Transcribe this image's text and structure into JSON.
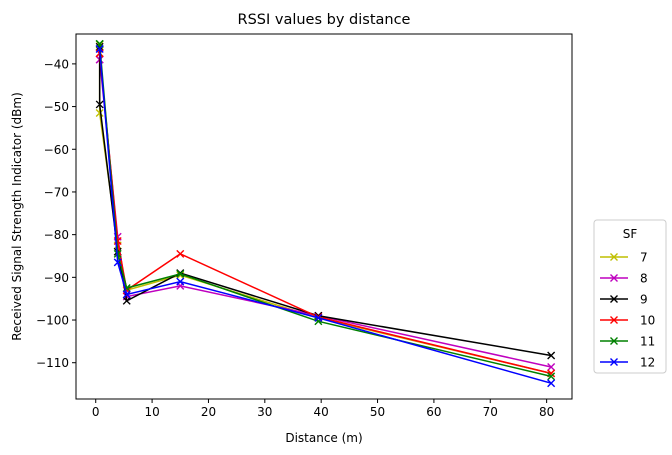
{
  "chart_data": {
    "type": "line",
    "title": "RSSI values by distance",
    "xlabel": "Distance (m)",
    "ylabel": "Received Signal Strength Indicator (dBm)",
    "xlim": [
      -3.5,
      84.5
    ],
    "ylim": [
      -118.5,
      -33
    ],
    "xticks": [
      0,
      10,
      20,
      30,
      40,
      50,
      60,
      70,
      80
    ],
    "yticks": [
      -110,
      -100,
      -90,
      -80,
      -70,
      -60,
      -50,
      -40
    ],
    "grid": false,
    "marker": "x",
    "legend": {
      "title": "SF",
      "placement": "outside right, lower"
    },
    "series": [
      {
        "name": "7",
        "color": "#bfbf00",
        "points": [
          [
            0.7,
            -35.5
          ],
          [
            0.7,
            -51.5
          ],
          [
            3.9,
            -82.5
          ],
          [
            5.5,
            -93
          ],
          [
            15,
            -89.5
          ],
          [
            39.5,
            -99.5
          ],
          [
            80.8,
            -112.5
          ]
        ]
      },
      {
        "name": "8",
        "color": "#bf00bf",
        "points": [
          [
            0.7,
            -39
          ],
          [
            0.7,
            -39
          ],
          [
            3.9,
            -80.5
          ],
          [
            5.5,
            -94.5
          ],
          [
            15,
            -92
          ],
          [
            39.5,
            -99
          ],
          [
            80.8,
            -111
          ]
        ]
      },
      {
        "name": "9",
        "color": "#000000",
        "points": [
          [
            0.7,
            -36
          ],
          [
            0.7,
            -49.5
          ],
          [
            3.9,
            -84
          ],
          [
            5.5,
            -95.5
          ],
          [
            15,
            -89
          ],
          [
            39.5,
            -99
          ],
          [
            80.8,
            -108.3
          ]
        ]
      },
      {
        "name": "10",
        "color": "#ff0000",
        "points": [
          [
            0.7,
            -37.5
          ],
          [
            0.7,
            -37.5
          ],
          [
            3.9,
            -81.5
          ],
          [
            5.5,
            -93
          ],
          [
            15,
            -84.5
          ],
          [
            39.5,
            -99.3
          ],
          [
            80.8,
            -112.5
          ]
        ]
      },
      {
        "name": "11",
        "color": "#008000",
        "points": [
          [
            0.7,
            -35.3
          ],
          [
            0.7,
            -35.3
          ],
          [
            3.9,
            -84.5
          ],
          [
            5.5,
            -92.5
          ],
          [
            15,
            -89.2
          ],
          [
            39.5,
            -100.3
          ],
          [
            80.8,
            -113.2
          ]
        ]
      },
      {
        "name": "12",
        "color": "#0000ff",
        "points": [
          [
            0.7,
            -36.5
          ],
          [
            0.7,
            -36.5
          ],
          [
            3.9,
            -86.5
          ],
          [
            5.5,
            -94
          ],
          [
            15,
            -91
          ],
          [
            39.5,
            -99.5
          ],
          [
            80.8,
            -114.8
          ]
        ]
      }
    ]
  }
}
